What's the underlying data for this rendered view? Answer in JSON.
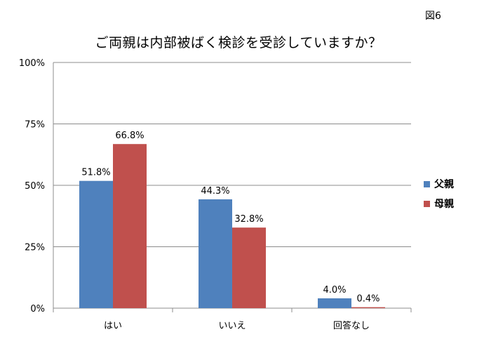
{
  "figure_label": "図6",
  "chart_data": {
    "type": "bar",
    "title": "ご両親は内部被ばく検診を受診していますか？",
    "xlabel": "",
    "ylabel": "",
    "categories": [
      "はい",
      "いいえ",
      "回答なし"
    ],
    "series": [
      {
        "name": "父親",
        "color": "#4F81BD",
        "values": [
          51.8,
          44.3,
          4.0
        ],
        "labels": [
          "51.8%",
          "44.3%",
          "4.0%"
        ]
      },
      {
        "name": "母親",
        "color": "#C0504D",
        "values": [
          66.8,
          32.8,
          0.4
        ],
        "labels": [
          "66.8%",
          "32.8%",
          "0.4%"
        ]
      }
    ],
    "ylim": [
      0,
      100
    ],
    "yticks": [
      0,
      25,
      50,
      75,
      100
    ],
    "ytick_labels": [
      "0%",
      "25%",
      "50%",
      "75%",
      "100%"
    ],
    "grid": true,
    "legend_position": "right"
  }
}
